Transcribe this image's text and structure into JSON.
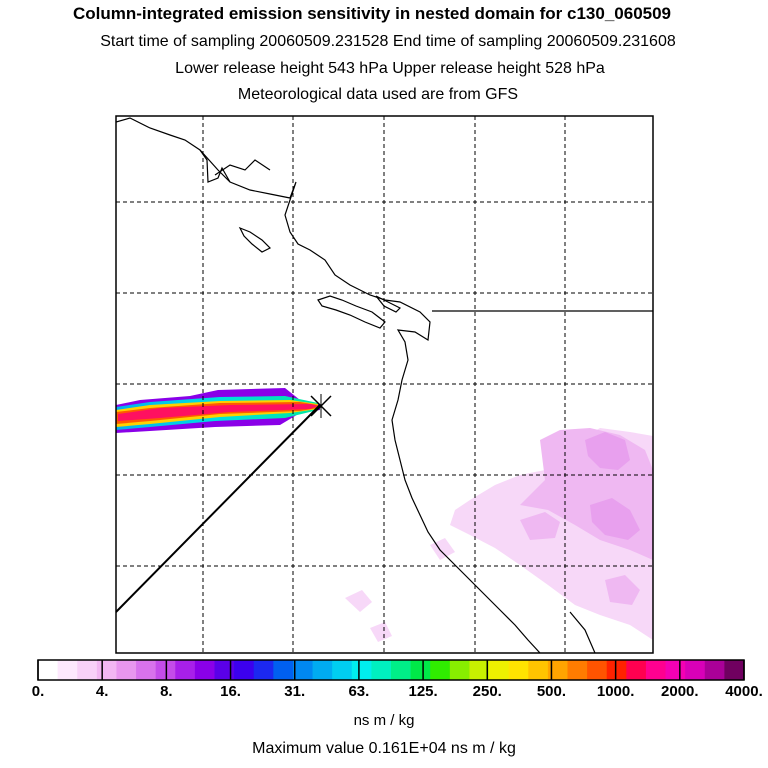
{
  "header": {
    "title": "Column-integrated emission sensitivity in nested domain for c130_060509",
    "line2": "Start time of sampling 20060509.231528     End time of sampling 20060509.231608",
    "line3": "Lower release height  543 hPa       Upper release height  528 hPa",
    "line4": "Meteorological data used are from GFS"
  },
  "colorbar": {
    "tick_labels": [
      "0.",
      "4.",
      "8.",
      "16.",
      "31.",
      "63.",
      "125.",
      "250.",
      "500.",
      "1000.",
      "2000.",
      "4000."
    ],
    "colors": [
      "#ffffff",
      "#fde8fd",
      "#f8d0f8",
      "#f2b6f2",
      "#e896ee",
      "#d872ec",
      "#c44cea",
      "#a820ea",
      "#8a00e8",
      "#5a00e8",
      "#3c00ee",
      "#1c28f0",
      "#0060f0",
      "#0088f2",
      "#00acf2",
      "#00cef2",
      "#00eeee",
      "#00f0c0",
      "#00ee88",
      "#00e848",
      "#30ec00",
      "#88ee00",
      "#c8f000",
      "#eef000",
      "#ffe400",
      "#ffc400",
      "#ffa400",
      "#ff7c00",
      "#ff5400",
      "#ff2200",
      "#ff0050",
      "#ff0090",
      "#f400b4",
      "#d800b8",
      "#aa0098",
      "#700060"
    ],
    "units": "ns m / kg",
    "max_value_text": "Maximum value  0.161E+04 ns m / kg"
  }
}
